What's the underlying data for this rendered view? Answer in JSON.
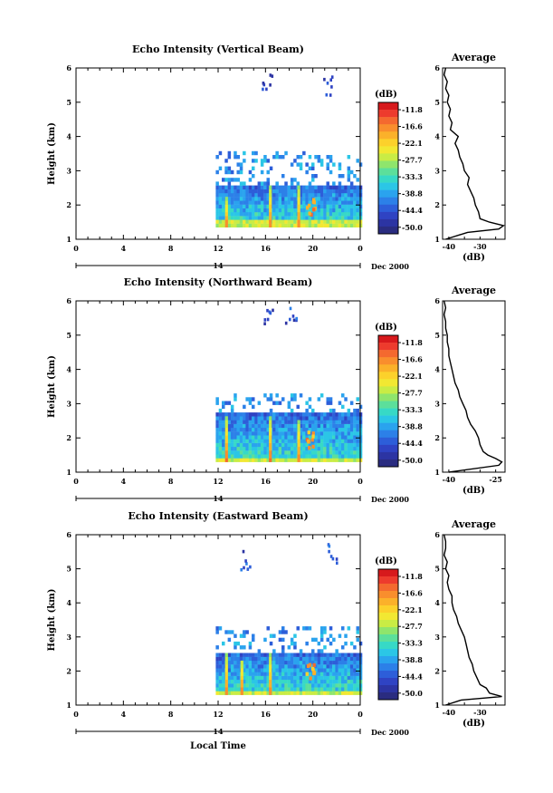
{
  "colorbar": {
    "unit_label": "(dB)",
    "tick_labels": [
      "-11.8",
      "-16.6",
      "-22.1",
      "-27.7",
      "-33.3",
      "-38.8",
      "-44.4",
      "-50.0"
    ],
    "colors": [
      "#d7191c",
      "#ed3b2d",
      "#f4692f",
      "#f98e2d",
      "#fbb12a",
      "#fcd12b",
      "#f2e832",
      "#c9ec45",
      "#8fe56c",
      "#5cdf9b",
      "#37d9c6",
      "#2bc6e6",
      "#2aa3ee",
      "#2c80e8",
      "#2d5ed9",
      "#2f43c3",
      "#2c34a3",
      "#2a2c80"
    ]
  },
  "x_axis": {
    "tick_labels": [
      "0",
      "4",
      "8",
      "12",
      "16",
      "20",
      "0"
    ],
    "day_label": "14",
    "date_label": "Dec 2000",
    "xlabel": "Local Time"
  },
  "chart_data": [
    {
      "type": "heatmap",
      "title": "Echo Intensity (Vertical Beam)",
      "ylabel": "Height (km)",
      "xlim": [
        0,
        24
      ],
      "ylim": [
        1,
        6
      ],
      "y_ticks": [
        1,
        2,
        3,
        4,
        5,
        6
      ],
      "data_start_hour": 11.8,
      "echo_top_km": 2.6,
      "echo_base_km": 1.35,
      "scattered_top_km": 3.6,
      "spikes": [
        {
          "hour": 12.7,
          "top_km": 2.3
        },
        {
          "hour": 16.4,
          "top_km": 2.6
        },
        {
          "hour": 18.8,
          "top_km": 2.6
        }
      ],
      "isolated_echoes": [
        {
          "hour": 21.4,
          "height_km": 5.5
        },
        {
          "hour": 16.1,
          "height_km": 5.6
        }
      ],
      "profile": {
        "title": "Average",
        "xlabel": "(dB)",
        "xlim": [
          -42,
          -22
        ],
        "x_ticks": [
          -40,
          -30
        ],
        "y_ticks": [
          1,
          2,
          3,
          4,
          5,
          6
        ],
        "heights_km": [
          1.0,
          1.2,
          1.3,
          1.4,
          1.5,
          1.6,
          1.8,
          2.0,
          2.2,
          2.4,
          2.6,
          2.8,
          3.0,
          3.2,
          3.4,
          3.6,
          3.8,
          4.0,
          4.2,
          4.4,
          4.6,
          4.8,
          5.0,
          5.2,
          5.4,
          5.6,
          5.8,
          6.0
        ],
        "values_db": [
          -41,
          -34,
          -24,
          -22.5,
          -27,
          -30,
          -30.5,
          -31.5,
          -32,
          -33,
          -34,
          -33.5,
          -35,
          -35.5,
          -36.5,
          -37,
          -38,
          -37,
          -39.5,
          -39,
          -40,
          -39.5,
          -40.5,
          -40,
          -41,
          -40.5,
          -41.5,
          -41
        ]
      }
    },
    {
      "type": "heatmap",
      "title": "Echo Intensity (Northward Beam)",
      "ylabel": "Height (km)",
      "xlim": [
        0,
        24
      ],
      "ylim": [
        1,
        6
      ],
      "y_ticks": [
        1,
        2,
        3,
        4,
        5,
        6
      ],
      "data_start_hour": 11.8,
      "echo_top_km": 2.7,
      "echo_base_km": 1.3,
      "scattered_top_km": 3.4,
      "spikes": [
        {
          "hour": 12.7,
          "top_km": 2.7
        },
        {
          "hour": 16.4,
          "top_km": 2.7
        },
        {
          "hour": 18.8,
          "top_km": 2.6
        }
      ],
      "isolated_echoes": [
        {
          "hour": 16.2,
          "height_km": 5.6
        },
        {
          "hour": 18.0,
          "height_km": 5.6
        }
      ],
      "profile": {
        "title": "Average",
        "xlabel": "(dB)",
        "xlim": [
          -42,
          -22
        ],
        "x_ticks": [
          -40,
          -25
        ],
        "y_ticks": [
          1,
          2,
          3,
          4,
          5,
          6
        ],
        "heights_km": [
          1.0,
          1.2,
          1.3,
          1.4,
          1.5,
          1.6,
          1.8,
          2.0,
          2.2,
          2.4,
          2.6,
          2.8,
          3.0,
          3.2,
          3.4,
          3.6,
          3.8,
          4.0,
          4.2,
          4.4,
          4.6,
          4.8,
          5.0,
          5.2,
          5.4,
          5.6,
          5.8,
          6.0
        ],
        "values_db": [
          -40,
          -24,
          -23,
          -25,
          -27.5,
          -29,
          -30,
          -30.5,
          -31.5,
          -33,
          -34,
          -34.5,
          -35.5,
          -36.5,
          -37,
          -38,
          -38.5,
          -39,
          -39.5,
          -40,
          -40,
          -40.5,
          -40.5,
          -41,
          -41,
          -41.5,
          -41,
          -41.5
        ]
      }
    },
    {
      "type": "heatmap",
      "title": "Echo Intensity (Eastward Beam)",
      "ylabel": "Height (km)",
      "xlim": [
        0,
        24
      ],
      "ylim": [
        1,
        6
      ],
      "y_ticks": [
        1,
        2,
        3,
        4,
        5,
        6
      ],
      "data_start_hour": 11.8,
      "echo_top_km": 2.5,
      "echo_base_km": 1.3,
      "scattered_top_km": 3.4,
      "spikes": [
        {
          "hour": 12.7,
          "top_km": 2.6
        },
        {
          "hour": 16.4,
          "top_km": 2.6
        },
        {
          "hour": 14.0,
          "top_km": 2.4
        }
      ],
      "isolated_echoes": [
        {
          "hour": 14.2,
          "height_km": 5.3
        },
        {
          "hour": 21.5,
          "height_km": 5.5
        }
      ],
      "profile": {
        "title": "Average",
        "xlabel": "(dB)",
        "xlim": [
          -42,
          -22
        ],
        "x_ticks": [
          -40,
          -30
        ],
        "y_ticks": [
          1,
          2,
          3,
          4,
          5,
          6
        ],
        "heights_km": [
          1.0,
          1.15,
          1.25,
          1.35,
          1.5,
          1.6,
          1.8,
          2.0,
          2.2,
          2.4,
          2.6,
          2.8,
          3.0,
          3.2,
          3.4,
          3.6,
          3.8,
          4.0,
          4.2,
          4.4,
          4.6,
          4.8,
          5.0,
          5.2,
          5.4,
          5.6,
          5.8,
          6.0
        ],
        "values_db": [
          -41,
          -36,
          -23,
          -27,
          -28,
          -30,
          -31,
          -32,
          -32.5,
          -33.5,
          -34,
          -34.5,
          -35,
          -36,
          -37,
          -37.5,
          -38.5,
          -39,
          -39,
          -40,
          -40.5,
          -40,
          -41,
          -40.5,
          -41.5,
          -41,
          -41,
          -41.5
        ]
      }
    }
  ]
}
